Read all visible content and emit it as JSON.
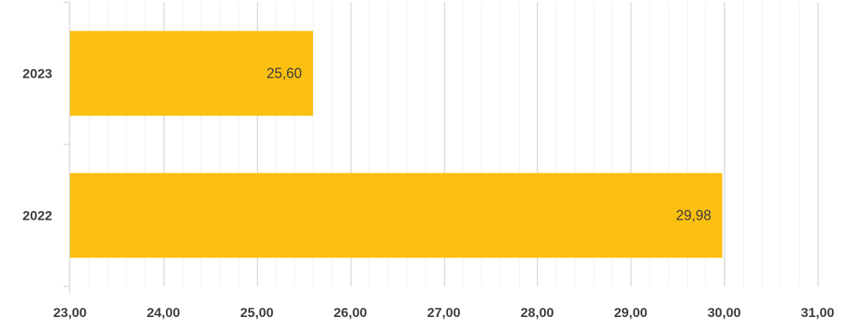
{
  "chart_data": {
    "type": "bar",
    "orientation": "horizontal",
    "categories": [
      "2023",
      "2022"
    ],
    "values": [
      25.6,
      29.98
    ],
    "value_labels": [
      "25,60",
      "29,98"
    ],
    "xlim": [
      23,
      31
    ],
    "x_ticks": [
      23,
      24,
      25,
      26,
      27,
      28,
      29,
      30,
      31
    ],
    "x_tick_labels": [
      "23,00",
      "24,00",
      "25,00",
      "26,00",
      "27,00",
      "28,00",
      "29,00",
      "30,00",
      "31,00"
    ],
    "title": "",
    "xlabel": "",
    "ylabel": "",
    "grid": true,
    "minor_grid": true,
    "legend": false,
    "bar_color": "#FBBF10"
  },
  "colors": {
    "major_grid": "#d9d9d9",
    "minor_grid": "#efefef",
    "axis": "#d9d9d9",
    "tick_text": "#3f3f3f",
    "data_label_text": "#404040"
  }
}
